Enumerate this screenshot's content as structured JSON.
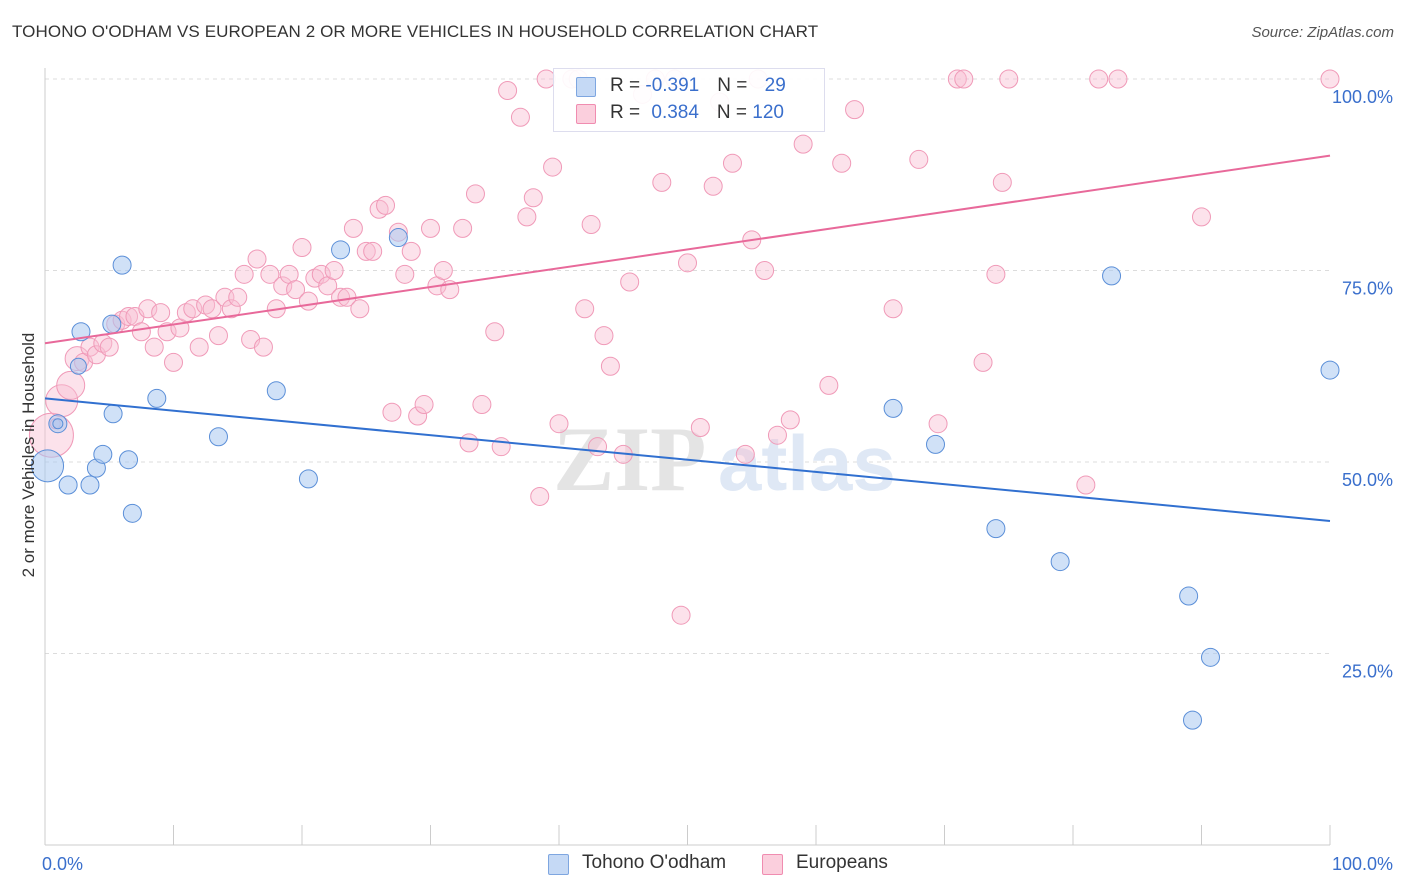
{
  "header": {
    "title": "TOHONO O'ODHAM VS EUROPEAN 2 OR MORE VEHICLES IN HOUSEHOLD CORRELATION CHART",
    "source": "Source: ZipAtlas.com"
  },
  "watermark": {
    "part1": "ZIP",
    "part2": "atlas"
  },
  "legend": {
    "rows": [
      {
        "r_label": "R = ",
        "r_value": "-0.391",
        "n_label": "N = ",
        "n_value": "29"
      },
      {
        "r_label": "R = ",
        "r_value": "0.384",
        "n_label": "N = ",
        "n_value": "120"
      }
    ]
  },
  "chart_data": {
    "type": "scatter",
    "ylabel": "2 or more Vehicles in Household",
    "xlim": [
      0,
      100
    ],
    "ylim": [
      0,
      100
    ],
    "x_tick_labels": [
      "0.0%",
      "100.0%"
    ],
    "y_ticks": [
      25,
      50,
      75,
      100
    ],
    "y_tick_labels": [
      "25.0%",
      "50.0%",
      "75.0%",
      "100.0%"
    ],
    "grid": true,
    "legend_position": "bottom",
    "colors": {
      "blue": "#5b8fd8",
      "pink": "#f08cb0",
      "blue_line": "#3170d0",
      "pink_line": "#e8699a",
      "tick_label": "#3a6fcc"
    },
    "series": [
      {
        "name": "Tohono O'odham",
        "trend": [
          [
            0,
            58.3
          ],
          [
            100,
            42.3
          ]
        ],
        "points": [
          [
            0.2,
            49.5,
            16
          ],
          [
            1.0,
            55.0,
            9
          ],
          [
            1.8,
            47.0,
            9
          ],
          [
            2.8,
            67.0,
            9
          ],
          [
            2.6,
            62.5,
            8
          ],
          [
            3.5,
            47.0,
            9
          ],
          [
            4.0,
            49.2,
            9
          ],
          [
            4.5,
            51.0,
            9
          ],
          [
            5.2,
            68.0,
            9
          ],
          [
            5.3,
            56.3,
            9
          ],
          [
            6.0,
            75.7,
            9
          ],
          [
            6.5,
            50.3,
            9
          ],
          [
            6.8,
            43.3,
            9
          ],
          [
            8.7,
            58.3,
            9
          ],
          [
            13.5,
            53.3,
            9
          ],
          [
            18.0,
            59.3,
            9
          ],
          [
            20.5,
            47.8,
            9
          ],
          [
            23.0,
            77.7,
            9
          ],
          [
            27.5,
            79.3,
            9
          ],
          [
            66.0,
            57.0,
            9
          ],
          [
            69.3,
            52.3,
            9
          ],
          [
            74.0,
            41.3,
            9
          ],
          [
            79.0,
            37.0,
            9
          ],
          [
            83.0,
            74.3,
            9
          ],
          [
            89.0,
            32.5,
            9
          ],
          [
            90.7,
            24.5,
            9
          ],
          [
            89.3,
            16.3,
            9
          ],
          [
            100.0,
            62.0,
            9
          ],
          [
            1.0,
            55.0,
            5
          ]
        ]
      },
      {
        "name": "Europeans",
        "trend": [
          [
            0,
            65.5
          ],
          [
            100,
            90.0
          ]
        ],
        "points": [
          [
            0.5,
            53.5,
            22
          ],
          [
            1.3,
            58.0,
            16
          ],
          [
            2.0,
            60.0,
            14
          ],
          [
            2.5,
            63.5,
            12
          ],
          [
            3.0,
            63.0,
            9
          ],
          [
            3.5,
            65.0,
            9
          ],
          [
            4.0,
            64.0,
            9
          ],
          [
            4.5,
            65.5,
            9
          ],
          [
            5.0,
            65.0,
            9
          ],
          [
            5.5,
            68.0,
            9
          ],
          [
            6.0,
            68.5,
            9
          ],
          [
            6.5,
            69.0,
            9
          ],
          [
            7.0,
            69.0,
            9
          ],
          [
            7.5,
            67.0,
            9
          ],
          [
            8.0,
            70.0,
            9
          ],
          [
            8.5,
            65.0,
            9
          ],
          [
            9.0,
            69.5,
            9
          ],
          [
            9.5,
            67.0,
            9
          ],
          [
            10.0,
            63.0,
            9
          ],
          [
            10.5,
            67.5,
            9
          ],
          [
            11.0,
            69.5,
            9
          ],
          [
            11.5,
            70.0,
            9
          ],
          [
            12.0,
            65.0,
            9
          ],
          [
            12.5,
            70.5,
            9
          ],
          [
            13.0,
            70.0,
            9
          ],
          [
            13.5,
            66.5,
            9
          ],
          [
            14.0,
            71.5,
            9
          ],
          [
            14.5,
            70.0,
            9
          ],
          [
            15.0,
            71.5,
            9
          ],
          [
            15.5,
            74.5,
            9
          ],
          [
            16.0,
            66.0,
            9
          ],
          [
            16.5,
            76.5,
            9
          ],
          [
            17.0,
            65.0,
            9
          ],
          [
            17.5,
            74.5,
            9
          ],
          [
            18.0,
            70.0,
            9
          ],
          [
            18.5,
            73.0,
            9
          ],
          [
            19.0,
            74.5,
            9
          ],
          [
            19.5,
            72.5,
            9
          ],
          [
            20.0,
            78.0,
            9
          ],
          [
            20.5,
            71.0,
            9
          ],
          [
            21.0,
            74.0,
            9
          ],
          [
            21.5,
            74.5,
            9
          ],
          [
            22.0,
            73.0,
            9
          ],
          [
            22.5,
            75.0,
            9
          ],
          [
            23.0,
            71.5,
            9
          ],
          [
            23.5,
            71.5,
            9
          ],
          [
            24.0,
            80.5,
            9
          ],
          [
            24.5,
            70.0,
            9
          ],
          [
            25.0,
            77.5,
            9
          ],
          [
            25.5,
            77.5,
            9
          ],
          [
            26.0,
            83.0,
            9
          ],
          [
            26.5,
            83.5,
            9
          ],
          [
            27.0,
            56.5,
            9
          ],
          [
            27.5,
            80.0,
            9
          ],
          [
            28.0,
            74.5,
            9
          ],
          [
            28.5,
            77.5,
            9
          ],
          [
            29.0,
            56.0,
            9
          ],
          [
            29.5,
            57.5,
            9
          ],
          [
            30.0,
            80.5,
            9
          ],
          [
            30.5,
            73.0,
            9
          ],
          [
            31.0,
            75.0,
            9
          ],
          [
            31.5,
            72.5,
            9
          ],
          [
            32.5,
            80.5,
            9
          ],
          [
            33.0,
            52.5,
            9
          ],
          [
            33.5,
            85.0,
            9
          ],
          [
            34.0,
            57.5,
            9
          ],
          [
            35.0,
            67.0,
            9
          ],
          [
            35.5,
            52.0,
            9
          ],
          [
            36.0,
            98.5,
            9
          ],
          [
            37.0,
            95.0,
            9
          ],
          [
            37.5,
            82.0,
            9
          ],
          [
            38.0,
            84.5,
            9
          ],
          [
            38.5,
            45.5,
            9
          ],
          [
            39.0,
            100.0,
            9
          ],
          [
            39.5,
            88.5,
            9
          ],
          [
            40.0,
            55.0,
            9
          ],
          [
            41.0,
            100.0,
            9
          ],
          [
            41.5,
            100.0,
            9
          ],
          [
            42.0,
            70.0,
            9
          ],
          [
            42.5,
            81.0,
            9
          ],
          [
            43.0,
            52.0,
            9
          ],
          [
            43.5,
            66.5,
            9
          ],
          [
            44.0,
            62.5,
            9
          ],
          [
            45.0,
            51.0,
            9
          ],
          [
            45.5,
            73.5,
            9
          ],
          [
            46.5,
            98.0,
            9
          ],
          [
            47.5,
            100.0,
            9
          ],
          [
            48.0,
            86.5,
            9
          ],
          [
            49.0,
            100.0,
            9
          ],
          [
            49.5,
            30.0,
            9
          ],
          [
            50.0,
            76.0,
            9
          ],
          [
            51.0,
            54.5,
            9
          ],
          [
            52.0,
            86.0,
            9
          ],
          [
            52.5,
            97.0,
            9
          ],
          [
            53.5,
            89.0,
            9
          ],
          [
            54.5,
            51.0,
            9
          ],
          [
            55.0,
            79.0,
            9
          ],
          [
            55.5,
            100.0,
            9
          ],
          [
            56.0,
            75.0,
            9
          ],
          [
            57.0,
            53.5,
            9
          ],
          [
            58.0,
            55.5,
            9
          ],
          [
            59.0,
            91.5,
            9
          ],
          [
            61.0,
            60.0,
            9
          ],
          [
            62.0,
            89.0,
            9
          ],
          [
            63.0,
            96.0,
            9
          ],
          [
            66.0,
            70.0,
            9
          ],
          [
            68.0,
            89.5,
            9
          ],
          [
            69.5,
            55.0,
            9
          ],
          [
            71.0,
            100.0,
            9
          ],
          [
            71.5,
            100.0,
            9
          ],
          [
            73.0,
            63.0,
            9
          ],
          [
            74.0,
            74.5,
            9
          ],
          [
            74.5,
            86.5,
            9
          ],
          [
            75.0,
            100.0,
            9
          ],
          [
            81.0,
            47.0,
            9
          ],
          [
            82.0,
            100.0,
            9
          ],
          [
            83.5,
            100.0,
            9
          ],
          [
            90.0,
            82.0,
            9
          ],
          [
            100.0,
            100.0,
            9
          ],
          [
            0.8,
            55.0,
            5
          ]
        ]
      }
    ]
  }
}
